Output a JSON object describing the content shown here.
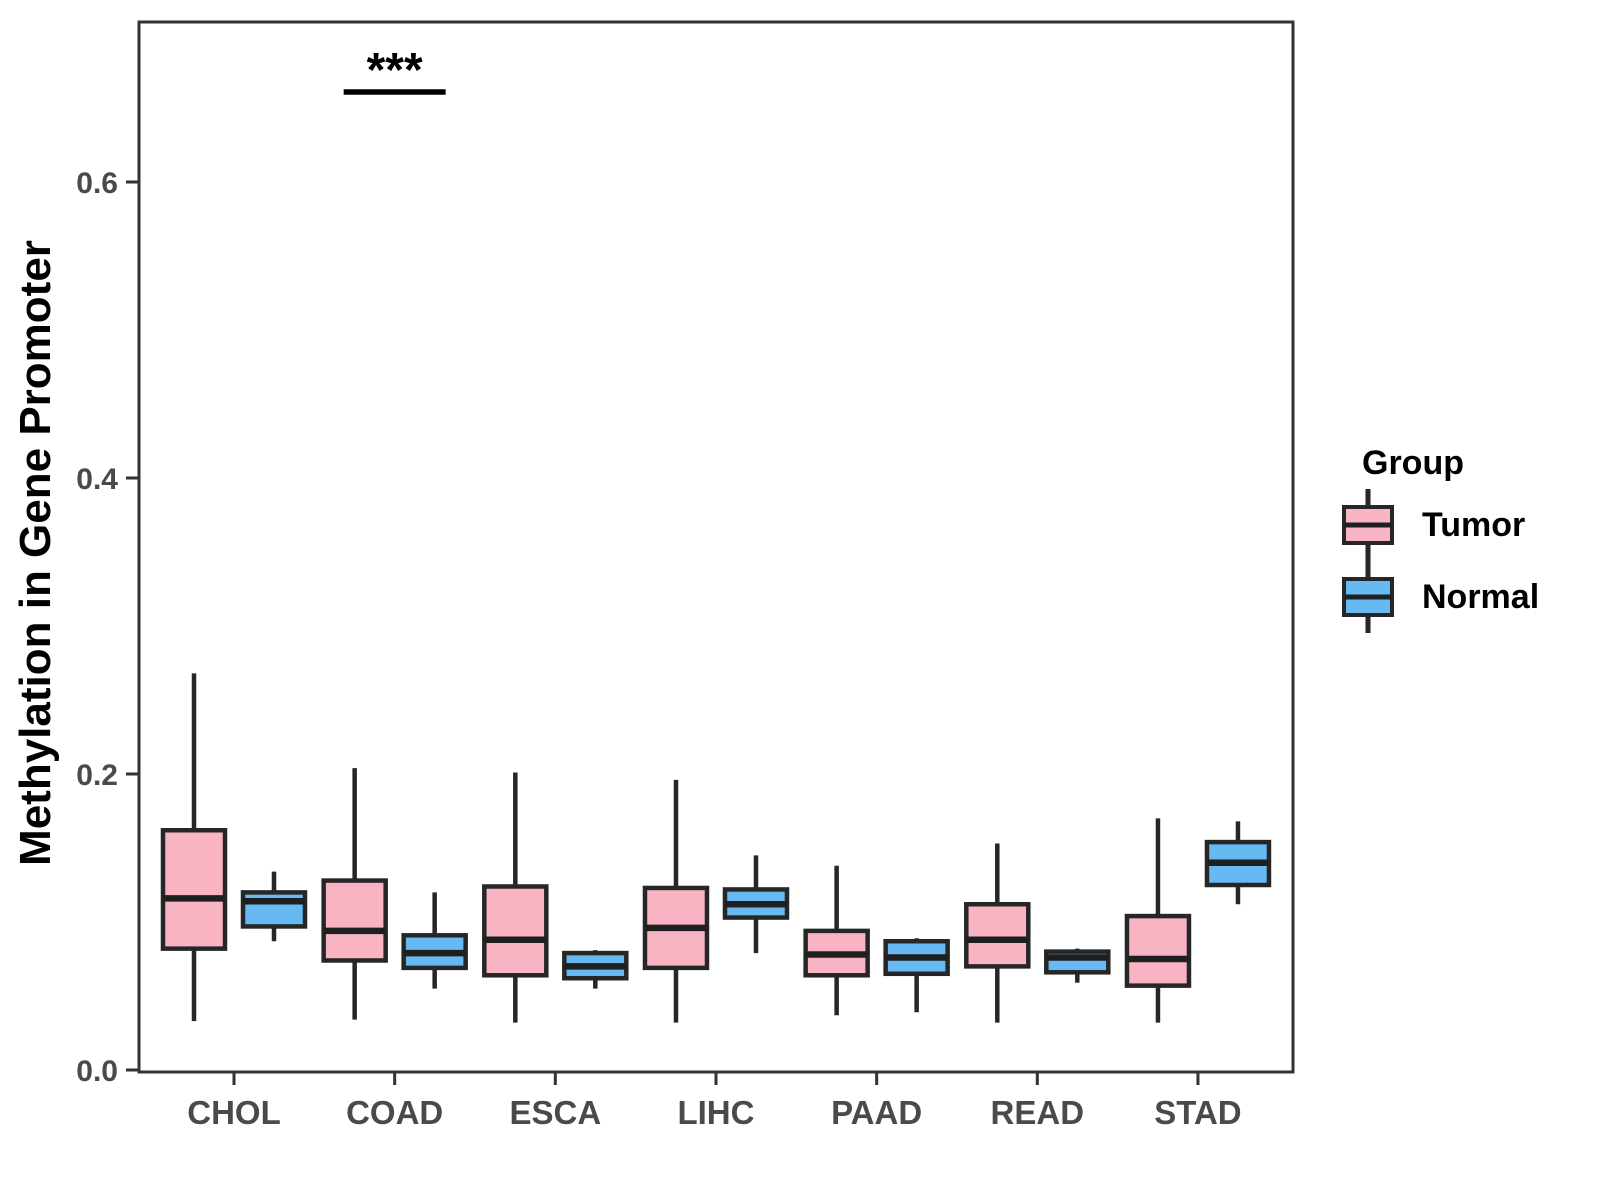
{
  "figure": {
    "y_axis_title": "Methylation in Gene Promoter",
    "legend": {
      "title": "Group",
      "items": [
        {
          "label": "Tumor",
          "color": "#F9B4C4"
        },
        {
          "label": "Normal",
          "color": "#67B9F1"
        }
      ]
    }
  },
  "chart_data": {
    "type": "grouped_boxplot",
    "title": "",
    "xlabel": "",
    "ylabel": "Methylation in Gene Promoter",
    "categories": [
      "CHOL",
      "COAD",
      "ESCA",
      "LIHC",
      "PAAD",
      "READ",
      "STAD"
    ],
    "y_ticks": [
      {
        "label": "0.0",
        "value": 0.0
      },
      {
        "label": "0.2",
        "value": 0.2
      },
      {
        "label": "0.4",
        "value": 0.4
      },
      {
        "label": "0.6",
        "value": 0.6
      }
    ],
    "ylim": [
      0.0,
      0.705
    ],
    "grid": false,
    "legend_position": "right",
    "outline_color": "#262626",
    "median_color": "#1f1f1f",
    "axis_text_color": "#4a4a4a",
    "axis_line_color": "#333333",
    "series": [
      {
        "name": "Tumor",
        "color": "#F9B4C4",
        "boxes": [
          {
            "category": "CHOL",
            "min": 0.033,
            "q1": 0.082,
            "median": 0.116,
            "q3": 0.162,
            "max": 0.268
          },
          {
            "category": "COAD",
            "min": 0.034,
            "q1": 0.074,
            "median": 0.094,
            "q3": 0.128,
            "max": 0.204
          },
          {
            "category": "ESCA",
            "min": 0.032,
            "q1": 0.064,
            "median": 0.088,
            "q3": 0.124,
            "max": 0.201
          },
          {
            "category": "LIHC",
            "min": 0.032,
            "q1": 0.069,
            "median": 0.096,
            "q3": 0.123,
            "max": 0.196
          },
          {
            "category": "PAAD",
            "min": 0.037,
            "q1": 0.064,
            "median": 0.078,
            "q3": 0.094,
            "max": 0.138
          },
          {
            "category": "READ",
            "min": 0.032,
            "q1": 0.07,
            "median": 0.088,
            "q3": 0.112,
            "max": 0.153
          },
          {
            "category": "STAD",
            "min": 0.032,
            "q1": 0.057,
            "median": 0.075,
            "q3": 0.104,
            "max": 0.17
          }
        ]
      },
      {
        "name": "Normal",
        "color": "#67B9F1",
        "boxes": [
          {
            "category": "CHOL",
            "min": 0.087,
            "q1": 0.097,
            "median": 0.114,
            "q3": 0.12,
            "max": 0.134
          },
          {
            "category": "COAD",
            "min": 0.055,
            "q1": 0.069,
            "median": 0.079,
            "q3": 0.091,
            "max": 0.12
          },
          {
            "category": "ESCA",
            "min": 0.055,
            "q1": 0.062,
            "median": 0.07,
            "q3": 0.079,
            "max": 0.081
          },
          {
            "category": "LIHC",
            "min": 0.079,
            "q1": 0.103,
            "median": 0.112,
            "q3": 0.122,
            "max": 0.145
          },
          {
            "category": "PAAD",
            "min": 0.039,
            "q1": 0.065,
            "median": 0.076,
            "q3": 0.087,
            "max": 0.089
          },
          {
            "category": "READ",
            "min": 0.059,
            "q1": 0.066,
            "median": 0.076,
            "q3": 0.08,
            "max": 0.082
          },
          {
            "category": "STAD",
            "min": 0.112,
            "q1": 0.125,
            "median": 0.14,
            "q3": 0.154,
            "max": 0.168
          }
        ]
      }
    ],
    "annotations": [
      {
        "category": "COAD",
        "label": "***",
        "type": "significance"
      }
    ]
  }
}
